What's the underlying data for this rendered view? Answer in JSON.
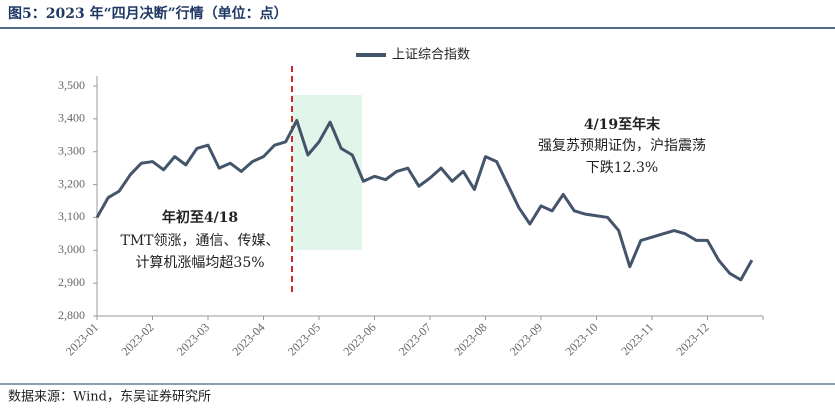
{
  "chart_data": {
    "type": "line",
    "title": "图5：2023 年“四月决断”行情（单位：点）",
    "source": "数据来源：Wind，东吴证券研究所",
    "annotations": [
      [
        "年初至4/18",
        "TMT领涨，通信、传媒、",
        "计算机涨幅均超35%"
      ],
      [
        "4/19至年末",
        "强复苏预期证伪，沪指震荡",
        "下跌12.3%"
      ]
    ],
    "categories": [
      "2023-01",
      null,
      null,
      null,
      null,
      "2023-02",
      null,
      null,
      null,
      null,
      "2023-03",
      null,
      null,
      null,
      null,
      "2023-04",
      null,
      null,
      null,
      null,
      "2023-05",
      null,
      null,
      null,
      null,
      "2023-06",
      null,
      null,
      null,
      null,
      "2023-07",
      null,
      null,
      null,
      null,
      "2023-08",
      null,
      null,
      null,
      null,
      "2023-09",
      null,
      null,
      null,
      null,
      "2023-10",
      null,
      null,
      null,
      null,
      "2023-11",
      null,
      null,
      null,
      null,
      "2023-12",
      null,
      null,
      null,
      null
    ],
    "series": [
      {
        "name": "上证综合指数",
        "color": "#44546a",
        "values": [
          3100,
          3160,
          3180,
          3230,
          3265,
          3270,
          3245,
          3285,
          3260,
          3310,
          3320,
          3250,
          3265,
          3240,
          3270,
          3285,
          3320,
          3330,
          3395,
          3290,
          3330,
          3390,
          3310,
          3290,
          3210,
          3225,
          3215,
          3240,
          3250,
          3195,
          3220,
          3250,
          3210,
          3240,
          3185,
          3285,
          3270,
          3200,
          3130,
          3080,
          3135,
          3120,
          3170,
          3120,
          3110,
          3105,
          3100,
          3060,
          2950,
          3030,
          3040,
          3050,
          3060,
          3050,
          3030,
          3030,
          2970,
          2930,
          2910,
          2970
        ]
      }
    ],
    "ylim": [
      2800,
      3500
    ],
    "yticks": [
      {
        "value": 2800,
        "label": "2,800"
      },
      {
        "value": 2900,
        "label": "2,900"
      },
      {
        "value": 3000,
        "label": "3,000"
      },
      {
        "value": 3100,
        "label": "3,100"
      },
      {
        "value": 3200,
        "label": "3,200"
      },
      {
        "value": 3300,
        "label": "3,300"
      },
      {
        "value": 3400,
        "label": "3,400"
      },
      {
        "value": 3500,
        "label": "3,500"
      }
    ],
    "grid": false
  }
}
